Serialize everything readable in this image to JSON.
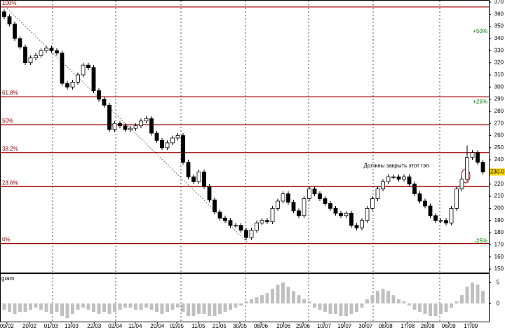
{
  "chart_data": {
    "type": "candlestick",
    "candles": [
      [
        362,
        364,
        356,
        358
      ],
      [
        358,
        360,
        350,
        352
      ],
      [
        352,
        354,
        338,
        340
      ],
      [
        340,
        342,
        331,
        333
      ],
      [
        333,
        335,
        318,
        320
      ],
      [
        320,
        326,
        318,
        324
      ],
      [
        324,
        328,
        322,
        326
      ],
      [
        326,
        332,
        324,
        330
      ],
      [
        330,
        334,
        328,
        332
      ],
      [
        332,
        334,
        328,
        330
      ],
      [
        330,
        332,
        326,
        328
      ],
      [
        328,
        330,
        301,
        303
      ],
      [
        303,
        305,
        298,
        300
      ],
      [
        300,
        306,
        298,
        304
      ],
      [
        304,
        312,
        302,
        310
      ],
      [
        310,
        320,
        308,
        318
      ],
      [
        318,
        320,
        314,
        316
      ],
      [
        316,
        318,
        295,
        297
      ],
      [
        297,
        299,
        288,
        290
      ],
      [
        290,
        292,
        283,
        285
      ],
      [
        285,
        287,
        263,
        265
      ],
      [
        265,
        272,
        263,
        270
      ],
      [
        270,
        272,
        266,
        268
      ],
      [
        268,
        270,
        263,
        265
      ],
      [
        265,
        268,
        263,
        266
      ],
      [
        266,
        270,
        264,
        268
      ],
      [
        268,
        274,
        266,
        272
      ],
      [
        272,
        276,
        270,
        274
      ],
      [
        274,
        276,
        260,
        262
      ],
      [
        262,
        264,
        254,
        256
      ],
      [
        256,
        258,
        248,
        250
      ],
      [
        250,
        256,
        248,
        254
      ],
      [
        254,
        260,
        252,
        258
      ],
      [
        258,
        262,
        256,
        260
      ],
      [
        260,
        262,
        236,
        238
      ],
      [
        238,
        240,
        224,
        226
      ],
      [
        226,
        228,
        220,
        222
      ],
      [
        222,
        232,
        220,
        230
      ],
      [
        230,
        232,
        216,
        218
      ],
      [
        218,
        220,
        205,
        207
      ],
      [
        207,
        209,
        195,
        197
      ],
      [
        197,
        199,
        190,
        192
      ],
      [
        192,
        194,
        188,
        190
      ],
      [
        190,
        192,
        184,
        186
      ],
      [
        186,
        188,
        184,
        186
      ],
      [
        186,
        188,
        180,
        182
      ],
      [
        182,
        184,
        174,
        176
      ],
      [
        176,
        184,
        174,
        182
      ],
      [
        182,
        190,
        180,
        188
      ],
      [
        188,
        192,
        186,
        190
      ],
      [
        190,
        192,
        187,
        189
      ],
      [
        189,
        202,
        187,
        200
      ],
      [
        200,
        208,
        198,
        206
      ],
      [
        206,
        214,
        204,
        212
      ],
      [
        212,
        214,
        203,
        205
      ],
      [
        205,
        207,
        196,
        198
      ],
      [
        198,
        200,
        192,
        194
      ],
      [
        194,
        210,
        192,
        208
      ],
      [
        208,
        218,
        206,
        216
      ],
      [
        216,
        218,
        210,
        212
      ],
      [
        212,
        214,
        206,
        208
      ],
      [
        208,
        210,
        202,
        204
      ],
      [
        204,
        206,
        198,
        200
      ],
      [
        200,
        202,
        194,
        196
      ],
      [
        196,
        198,
        192,
        194
      ],
      [
        194,
        198,
        192,
        196
      ],
      [
        196,
        198,
        184,
        186
      ],
      [
        186,
        188,
        182,
        184
      ],
      [
        184,
        192,
        182,
        190
      ],
      [
        190,
        202,
        188,
        200
      ],
      [
        200,
        210,
        198,
        208
      ],
      [
        208,
        218,
        206,
        216
      ],
      [
        216,
        224,
        214,
        222
      ],
      [
        222,
        228,
        220,
        226
      ],
      [
        226,
        228,
        224,
        226
      ],
      [
        226,
        228,
        222,
        224
      ],
      [
        224,
        228,
        222,
        226
      ],
      [
        226,
        228,
        218,
        220
      ],
      [
        220,
        222,
        210,
        212
      ],
      [
        212,
        214,
        204,
        206
      ],
      [
        206,
        208,
        200,
        202
      ],
      [
        202,
        204,
        192,
        194
      ],
      [
        194,
        196,
        188,
        190
      ],
      [
        190,
        192,
        188,
        190
      ],
      [
        190,
        192,
        186,
        188
      ],
      [
        188,
        202,
        186,
        200
      ],
      [
        200,
        218,
        198,
        216
      ],
      [
        216,
        226,
        214,
        224
      ],
      [
        224,
        252,
        222,
        242
      ],
      [
        242,
        248,
        240,
        246
      ],
      [
        246,
        248,
        236,
        238
      ],
      [
        238,
        240,
        228,
        230
      ]
    ],
    "up_color": "#ffffff",
    "down_color": "#000000",
    "ylim": [
      150,
      370
    ],
    "yticks": [
      150,
      160,
      170,
      180,
      190,
      200,
      210,
      220,
      230,
      240,
      250,
      260,
      270,
      280,
      290,
      300,
      310,
      320,
      330,
      340,
      350,
      360,
      370
    ],
    "xticks": [
      {
        "value": 0.5,
        "label": "09/02"
      },
      {
        "value": 4.8,
        "label": "20/02"
      },
      {
        "value": 8.9,
        "label": "01/03"
      },
      {
        "value": 12.8,
        "label": "13/03"
      },
      {
        "value": 17.1,
        "label": "22/03"
      },
      {
        "value": 21.1,
        "label": "02/04"
      },
      {
        "value": 24.9,
        "label": "11/04"
      },
      {
        "value": 29.1,
        "label": "20/04"
      },
      {
        "value": 32.8,
        "label": "02/05"
      },
      {
        "value": 36.9,
        "label": "11/05"
      },
      {
        "value": 40.9,
        "label": "21/05"
      },
      {
        "value": 44.8,
        "label": "30/05"
      },
      {
        "value": 48.8,
        "label": "08/06"
      },
      {
        "value": 53.1,
        "label": "20/06"
      },
      {
        "value": 56.8,
        "label": "29/06"
      },
      {
        "value": 60.8,
        "label": "10/07"
      },
      {
        "value": 64.7,
        "label": "19/07"
      },
      {
        "value": 68.7,
        "label": "30/07"
      },
      {
        "value": 72.5,
        "label": "08/08"
      },
      {
        "value": 76.7,
        "label": "17/08"
      },
      {
        "value": 80.5,
        "label": "28/08"
      },
      {
        "value": 84.5,
        "label": "06/09"
      },
      {
        "value": 88.7,
        "label": "17/09"
      }
    ],
    "levels": [
      {
        "value": 366,
        "label": "100%"
      },
      {
        "value": 292,
        "label": "61.8%"
      },
      {
        "value": 269,
        "label": "50%"
      },
      {
        "value": 246,
        "label": "38.2%"
      },
      {
        "value": 218,
        "label": "23.6%"
      },
      {
        "value": 171,
        "label": "0%"
      }
    ],
    "level_color": "#a00000",
    "side_labels": [
      {
        "value": 344,
        "label": "+50%"
      },
      {
        "value": 286,
        "label": "+25%"
      },
      {
        "value": 171,
        "label": "-25%"
      }
    ],
    "last_price": {
      "value": 230,
      "label": "230.0"
    },
    "annotation": "Должны закрыть  этот гэп",
    "histogram": {
      "title": "gram",
      "color": "#c0c0c0",
      "ylim": [
        -4.5,
        6.9
      ],
      "yticks": [
        0,
        5
      ],
      "values": [
        -1.5,
        -2,
        -2.5,
        -2,
        -2,
        -1.5,
        -1,
        -1.5,
        -2,
        -2.5,
        -2,
        -3,
        -3.5,
        -2.5,
        -1.5,
        -1,
        -1.5,
        -2,
        -2.5,
        -2,
        -2.5,
        -2,
        -1.5,
        -1,
        -1,
        -1.5,
        -1.5,
        -1,
        -1.5,
        -2,
        -2.5,
        -2,
        -1.5,
        -1,
        -2,
        -3,
        -3,
        -2.5,
        -2.5,
        -3,
        -3,
        -2.5,
        -2,
        -1.5,
        -1,
        -0.5,
        0.5,
        1,
        1.5,
        2,
        2.5,
        3.5,
        4.5,
        5,
        4,
        3,
        2,
        1,
        0.5,
        -1,
        -1.5,
        -2,
        -2.5,
        -2.5,
        -3,
        -3,
        -2.5,
        -2,
        -1,
        1,
        2,
        3,
        3.5,
        3,
        2,
        1,
        0.5,
        -0.5,
        -1.5,
        -2,
        -2.5,
        -3,
        -3,
        -2.5,
        -2,
        -1,
        0.5,
        2,
        4,
        5,
        4.5,
        3
      ]
    }
  }
}
